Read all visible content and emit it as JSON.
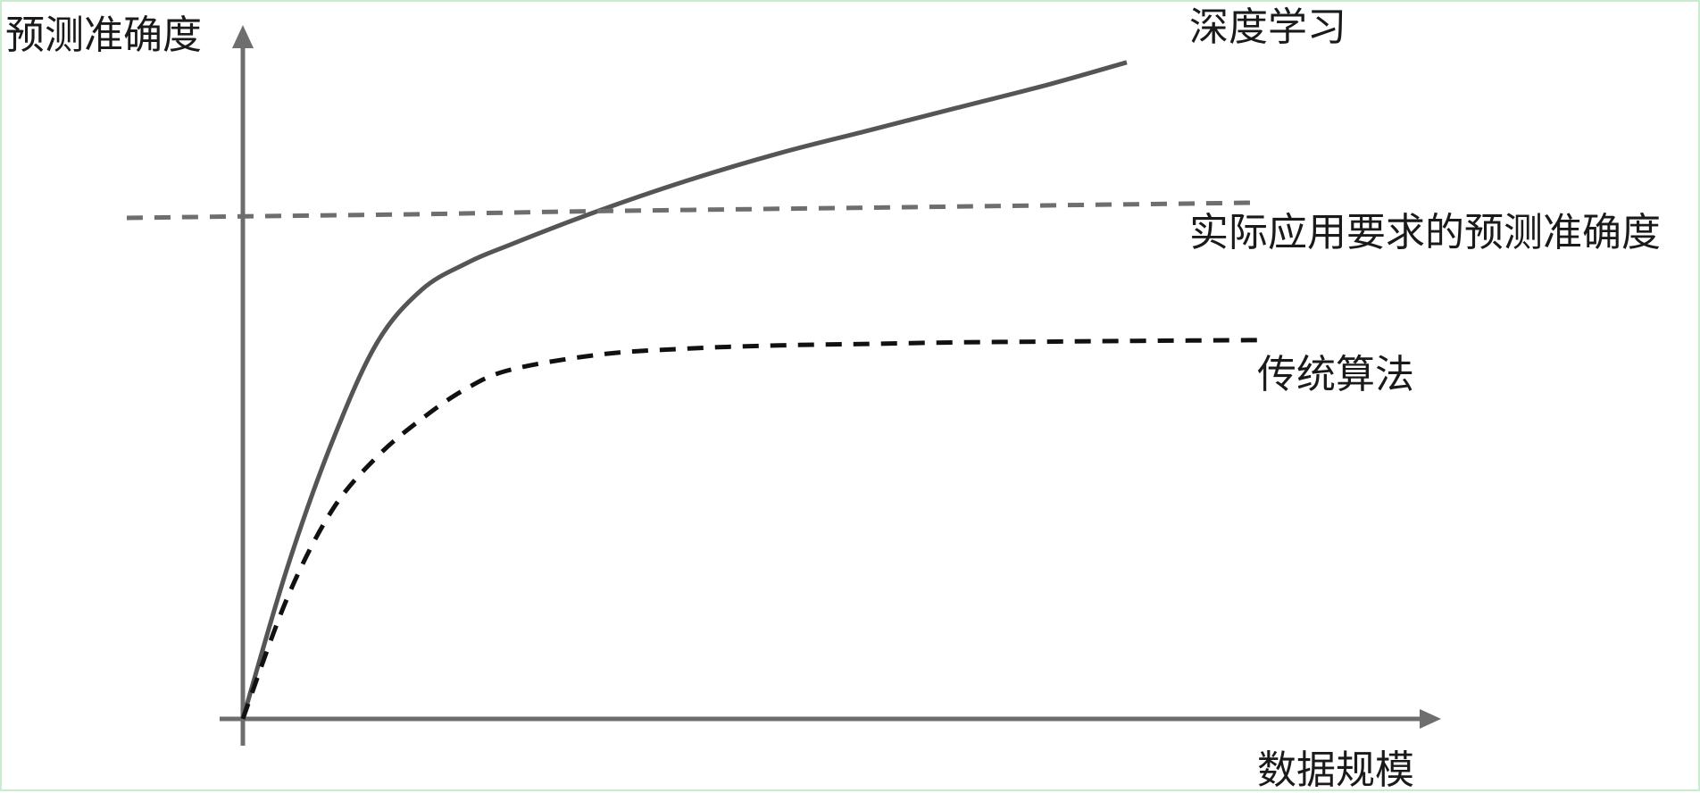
{
  "chart_data": {
    "type": "line",
    "ylabel": "预测准确度",
    "xlabel": "数据规模",
    "series": [
      {
        "name": "深度学习",
        "style": "solid",
        "color": "#555555",
        "x": [
          0,
          0.5,
          1,
          1.5,
          2,
          2.5,
          3,
          4,
          5,
          6,
          7,
          8,
          9,
          9.9
        ],
        "y": [
          0,
          2.0,
          3.65,
          4.95,
          5.65,
          6.0,
          6.25,
          6.7,
          7.1,
          7.45,
          7.75,
          8.05,
          8.35,
          8.65
        ]
      },
      {
        "name": "实际应用要求的预测准确度",
        "style": "dashed",
        "color": "#6e6e6e",
        "x": [
          -1.3,
          0,
          2,
          4,
          6,
          8,
          10,
          11.3
        ],
        "y": [
          6.6,
          6.62,
          6.65,
          6.69,
          6.72,
          6.75,
          6.78,
          6.8
        ]
      },
      {
        "name": "传统算法",
        "style": "dashed",
        "color": "#111111",
        "x": [
          0,
          0.5,
          1,
          1.5,
          2,
          2.5,
          3,
          4,
          5,
          6,
          7,
          8,
          9,
          10,
          11.4
        ],
        "y": [
          0,
          1.6,
          2.75,
          3.45,
          3.95,
          4.35,
          4.6,
          4.8,
          4.88,
          4.92,
          4.94,
          4.96,
          4.97,
          4.98,
          4.99
        ]
      }
    ],
    "xlim": [
      0,
      11.5
    ],
    "ylim": [
      0,
      9.1
    ],
    "grid": false,
    "axis_ticks": false,
    "legend": "inline labels at line ends"
  },
  "colors": {
    "axis": "#6e6e6e",
    "background": "#ffffff",
    "border": "#c9eccd"
  }
}
